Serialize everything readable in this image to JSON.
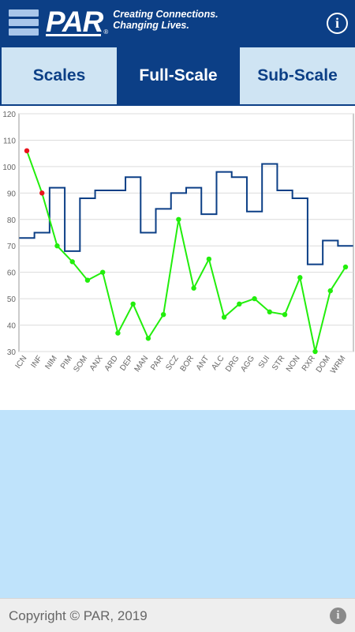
{
  "header": {
    "menu_icon": "hamburger-menu-icon",
    "logo_text": "PAR",
    "logo_reg": "®",
    "tagline_line1": "Creating Connections.",
    "tagline_line2": "Changing Lives.",
    "info_icon": "info-icon",
    "info_glyph": "i"
  },
  "tabs": [
    {
      "label": "Scales",
      "active": false
    },
    {
      "label": "Full-Scale",
      "active": true
    },
    {
      "label": "Sub-Scale",
      "active": false
    }
  ],
  "colors": {
    "brand": "#0c3f86",
    "tab_inactive": "#cfe4f3",
    "green_series": "#22ee0c",
    "red_point": "#e8141c",
    "blank_panel": "#bfe3fb"
  },
  "chart_data": {
    "type": "line",
    "grid": true,
    "ylim": [
      30,
      120
    ],
    "yticks": [
      30,
      40,
      50,
      60,
      70,
      80,
      90,
      100,
      110,
      120
    ],
    "categories": [
      "ICN",
      "INF",
      "NIM",
      "PIM",
      "SOM",
      "ANX",
      "ARD",
      "DEP",
      "MAN",
      "PAR",
      "SCZ",
      "BOR",
      "ANT",
      "ALC",
      "DRG",
      "AGG",
      "SUI",
      "STR",
      "NON",
      "RXR",
      "DOM",
      "WRM"
    ],
    "series": [
      {
        "style": "step",
        "color": "#0c3f86",
        "values": [
          73,
          75,
          92,
          68,
          88,
          91,
          91,
          96,
          75,
          84,
          90,
          92,
          82,
          98,
          96,
          83,
          101,
          91,
          88,
          63,
          72,
          70
        ]
      },
      {
        "style": "line-markers",
        "color": "#22ee0c",
        "values": [
          106,
          90,
          70,
          64,
          57,
          60,
          37,
          48,
          35,
          44,
          80,
          54,
          65,
          43,
          48,
          50,
          45,
          44,
          58,
          30,
          53,
          62
        ],
        "highlight_color": "#e8141c",
        "highlight_indices": [
          0,
          1
        ]
      }
    ]
  },
  "footer": {
    "copyright": "Copyright © PAR, 2019",
    "info_icon": "info-icon",
    "info_glyph": "i"
  }
}
